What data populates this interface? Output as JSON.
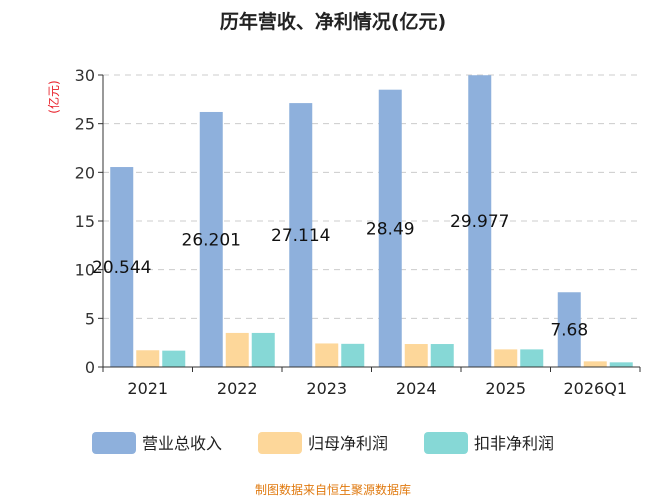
{
  "chart_data": {
    "type": "bar",
    "title": "历年营收、净利情况(亿元)",
    "ylabel": "(亿元)",
    "xlabel": "",
    "ylim": [
      0,
      30
    ],
    "yticks": [
      0,
      5,
      10,
      15,
      20,
      25,
      30
    ],
    "grid": true,
    "legend_position": "bottom",
    "categories": [
      "2021",
      "2022",
      "2023",
      "2024",
      "2025",
      "2026Q1"
    ],
    "series": [
      {
        "name": "营业总收入",
        "color": "#8eb0dc",
        "values": [
          20.544,
          26.201,
          27.114,
          28.49,
          29.977,
          7.68
        ],
        "labels": [
          "20.544",
          "26.201",
          "27.114",
          "28.49",
          "29.977",
          "7.68"
        ]
      },
      {
        "name": "归母净利润",
        "color": "#fdd79a",
        "values": [
          1.72,
          3.5,
          2.42,
          2.36,
          1.81,
          0.58
        ]
      },
      {
        "name": "扣非净利润",
        "color": "#86d8d6",
        "values": [
          1.68,
          3.5,
          2.38,
          2.36,
          1.81,
          0.48
        ]
      }
    ],
    "source": "制图数据来自恒生聚源数据库",
    "colors": {
      "ylabel": "#e8202a",
      "source": "#e07a10",
      "grid": "#cccccc",
      "axis": "#333333"
    }
  }
}
